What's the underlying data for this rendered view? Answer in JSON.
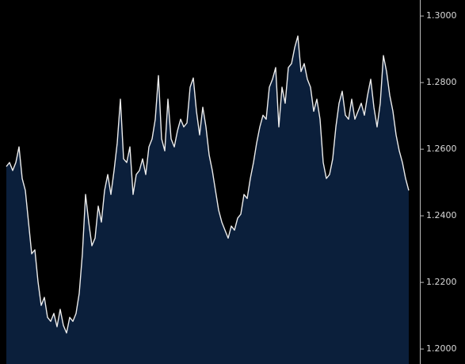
{
  "chart_data": {
    "type": "area",
    "values": [
      1.2548,
      1.256,
      1.2536,
      1.256,
      1.2607,
      1.2512,
      1.2476,
      1.2381,
      1.2286,
      1.2298,
      1.2202,
      1.2131,
      1.2155,
      1.2095,
      1.2083,
      1.2107,
      1.2067,
      1.2119,
      1.2071,
      1.2048,
      1.2095,
      1.2083,
      1.2107,
      1.2167,
      1.2286,
      1.2464,
      1.2381,
      1.231,
      1.2333,
      1.2429,
      1.2381,
      1.2476,
      1.2524,
      1.2464,
      1.2536,
      1.2619,
      1.275,
      1.2571,
      1.256,
      1.2607,
      1.2464,
      1.2524,
      1.2536,
      1.2571,
      1.2524,
      1.2607,
      1.2631,
      1.269,
      1.2821,
      1.2631,
      1.2595,
      1.275,
      1.2631,
      1.2607,
      1.2655,
      1.269,
      1.2667,
      1.2679,
      1.2786,
      1.2814,
      1.2714,
      1.2643,
      1.2726,
      1.2667,
      1.2583,
      1.2536,
      1.2476,
      1.2417,
      1.2381,
      1.2357,
      1.2333,
      1.2369,
      1.2357,
      1.2393,
      1.2405,
      1.2464,
      1.2452,
      1.2512,
      1.256,
      1.2619,
      1.2667,
      1.2702,
      1.269,
      1.2786,
      1.281,
      1.2845,
      1.2667,
      1.2786,
      1.2738,
      1.2845,
      1.2857,
      1.2905,
      1.294,
      1.2833,
      1.2857,
      1.281,
      1.2786,
      1.2714,
      1.275,
      1.269,
      1.256,
      1.2512,
      1.2524,
      1.2571,
      1.2667,
      1.2738,
      1.2774,
      1.2702,
      1.269,
      1.275,
      1.269,
      1.2714,
      1.2738,
      1.2702,
      1.2762,
      1.281,
      1.2726,
      1.2667,
      1.2738,
      1.2881,
      1.2833,
      1.2762,
      1.2714,
      1.2643,
      1.2595,
      1.256,
      1.2512,
      1.2476
    ],
    "color": "#ececec",
    "fill": "#0b1f3b",
    "ylim": [
      1.1955,
      1.3048
    ],
    "yticks": [
      {
        "value": 1.2,
        "label": "1.2000"
      },
      {
        "value": 1.22,
        "label": "1.2200"
      },
      {
        "value": 1.24,
        "label": "1.2400"
      },
      {
        "value": 1.26,
        "label": "1.2600"
      },
      {
        "value": 1.28,
        "label": "1.2800"
      },
      {
        "value": 1.3,
        "label": "1.3000"
      }
    ],
    "axis_side": "right"
  }
}
